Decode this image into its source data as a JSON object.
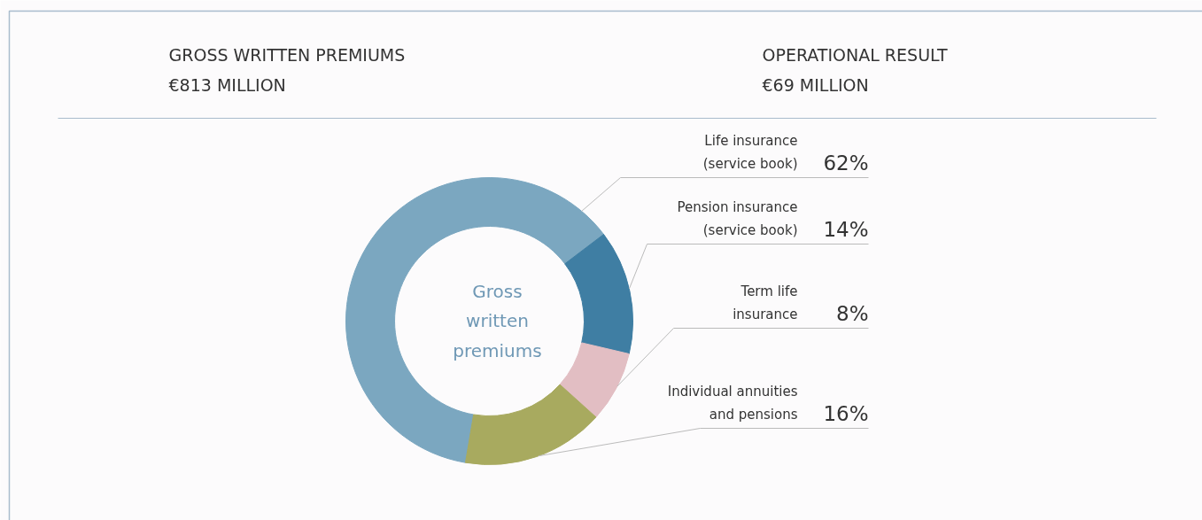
{
  "chart_data": {
    "type": "donut",
    "title": "GROSS WRITTEN PREMIUMS",
    "subtitle": "€813 MILLION",
    "annotations": [
      "OPERATIONAL RESULT",
      "€69 MILLION",
      "Gross\nwritten\npremiums"
    ],
    "categories": [
      "Life insurance\n(service book)",
      "Pension insurance\n(service book)",
      "Term life\ninsurance",
      "Individual annuities\nand pensions"
    ],
    "values": [
      62,
      14,
      8,
      16
    ],
    "colors": [
      "#7ba7c0",
      "#3f7ea3",
      "#e2bec3",
      "#a8aa5f"
    ],
    "value_labels": [
      "62%",
      "14%",
      "8%",
      "16%"
    ]
  }
}
